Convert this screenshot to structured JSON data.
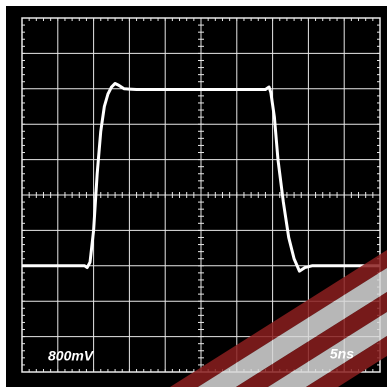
{
  "chart_data": {
    "type": "line",
    "x": [
      0,
      1.75,
      1.82,
      1.9,
      2.0,
      2.1,
      2.2,
      2.3,
      2.4,
      2.5,
      2.6,
      2.7,
      2.85,
      3.2,
      5,
      6.8,
      6.9,
      6.95,
      7.05,
      7.15,
      7.3,
      7.45,
      7.6,
      7.75,
      7.9,
      8.1,
      10
    ],
    "series": [
      {
        "color": "#ffffff",
        "values": [
          3,
          3,
          2.95,
          3.1,
          4.0,
          5.6,
          6.8,
          7.5,
          7.85,
          8.05,
          8.15,
          8.1,
          8.0,
          7.98,
          7.98,
          7.98,
          8.05,
          7.9,
          7.2,
          6.0,
          4.8,
          3.8,
          3.2,
          2.85,
          2.95,
          3.0,
          3.0
        ]
      }
    ],
    "xlim": [
      0,
      10
    ],
    "ylim": [
      0,
      10
    ],
    "xticks": [
      0,
      1,
      2,
      3,
      4,
      5,
      6,
      7,
      8,
      9,
      10
    ],
    "yticks": [
      0,
      1,
      2,
      3,
      4,
      5,
      6,
      7,
      8,
      9,
      10
    ],
    "grid": true,
    "volts_per_div_label": "800mV",
    "time_per_div_label": "5ns"
  }
}
